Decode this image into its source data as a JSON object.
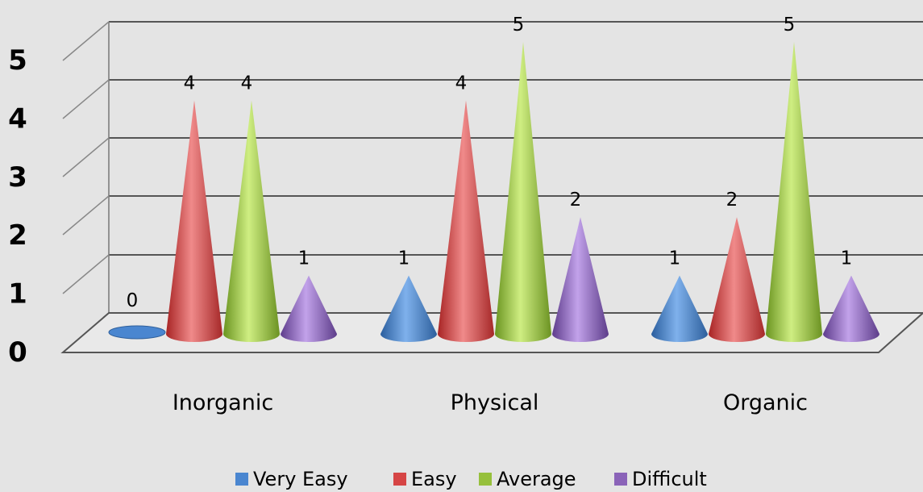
{
  "chart_data": {
    "type": "bar",
    "categories": [
      "Inorganic",
      "Physical",
      "Organic"
    ],
    "series": [
      {
        "name": "Very Easy",
        "values": [
          0,
          1,
          1
        ],
        "color": "#4a86d0"
      },
      {
        "name": "Easy",
        "values": [
          4,
          4,
          2
        ],
        "color": "#d64545"
      },
      {
        "name": "Average",
        "values": [
          4,
          5,
          5
        ],
        "color": "#96c03c"
      },
      {
        "name": "Difficult",
        "values": [
          1,
          2,
          1
        ],
        "color": "#8a63b8"
      }
    ],
    "y_ticks": [
      "0",
      "1",
      "2",
      "3",
      "4",
      "5"
    ],
    "ylim": [
      0,
      5
    ],
    "grid": true,
    "legend": "bottom",
    "mark_shape": "cone"
  }
}
